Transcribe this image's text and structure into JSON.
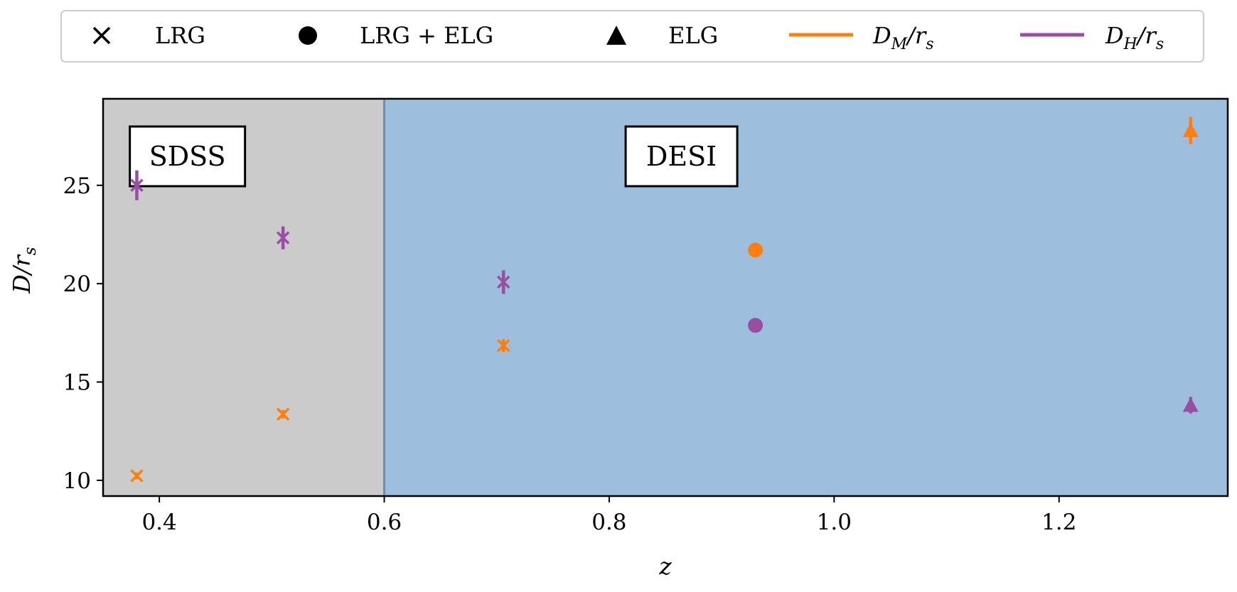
{
  "chart_data": {
    "type": "scatter",
    "xlabel": "z",
    "ylabel": "D/r_s",
    "xlim": [
      0.35,
      1.35
    ],
    "ylim": [
      9.2,
      29.4
    ],
    "xticks": [
      0.4,
      0.6,
      0.8,
      1.0,
      1.2
    ],
    "xtick_labels": [
      "0.4",
      "0.6",
      "0.8",
      "1.0",
      "1.2"
    ],
    "yticks": [
      10,
      15,
      20,
      25
    ],
    "ytick_labels": [
      "10",
      "15",
      "20",
      "25"
    ],
    "grid": false,
    "legend_position": "top-outside",
    "regions": [
      {
        "label": "SDSS",
        "x_range": [
          0.35,
          0.6
        ],
        "color": "#cbcbcb"
      },
      {
        "label": "DESI",
        "x_range": [
          0.6,
          1.35
        ],
        "color": "#9dbedc"
      }
    ],
    "divider": {
      "x": 0.6,
      "color": "#6f8fb0"
    },
    "markers": [
      {
        "name": "LRG",
        "shape": "x"
      },
      {
        "name": "LRG + ELG",
        "shape": "circle"
      },
      {
        "name": "ELG",
        "shape": "triangle"
      }
    ],
    "series": [
      {
        "name": "D_M/r_s",
        "name_main": "D",
        "name_sub": "M",
        "name_tail": "/r",
        "name_sub2": "s",
        "color": "#ff7f0e",
        "points": [
          {
            "x": 0.38,
            "y": 10.23,
            "err": 0.17,
            "marker": "x"
          },
          {
            "x": 0.51,
            "y": 13.36,
            "err": 0.21,
            "marker": "x"
          },
          {
            "x": 0.706,
            "y": 16.85,
            "err": 0.32,
            "marker": "x"
          },
          {
            "x": 0.93,
            "y": 21.71,
            "err": 0.28,
            "marker": "circle"
          },
          {
            "x": 1.317,
            "y": 27.79,
            "err": 0.69,
            "marker": "triangle"
          }
        ]
      },
      {
        "name": "D_H/r_s",
        "name_main": "D",
        "name_sub": "H",
        "name_tail": "/r",
        "name_sub2": "s",
        "color": "#984ea3",
        "points": [
          {
            "x": 0.38,
            "y": 25.0,
            "err": 0.76,
            "marker": "x"
          },
          {
            "x": 0.51,
            "y": 22.33,
            "err": 0.58,
            "marker": "x"
          },
          {
            "x": 0.706,
            "y": 20.08,
            "err": 0.6,
            "marker": "x"
          },
          {
            "x": 0.93,
            "y": 17.88,
            "err": 0.35,
            "marker": "circle"
          },
          {
            "x": 1.317,
            "y": 13.82,
            "err": 0.42,
            "marker": "triangle"
          }
        ]
      }
    ]
  }
}
